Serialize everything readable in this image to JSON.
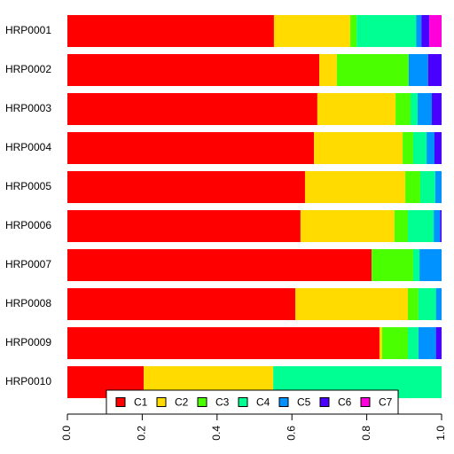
{
  "chart_data": {
    "type": "stacked-barh",
    "categories": [
      "HRP0001",
      "HRP0002",
      "HRP0003",
      "HRP0004",
      "HRP0005",
      "HRP0006",
      "HRP0007",
      "HRP0008",
      "HRP0009",
      "HRP0010"
    ],
    "series": [
      {
        "name": "C1",
        "color": "#FF0000",
        "values": [
          0.552,
          0.673,
          0.668,
          0.659,
          0.635,
          0.623,
          0.813,
          0.609,
          0.834,
          0.204
        ]
      },
      {
        "name": "C2",
        "color": "#FFDB00",
        "values": [
          0.204,
          0.047,
          0.209,
          0.237,
          0.268,
          0.251,
          0,
          0.301,
          0.007,
          0.346
        ]
      },
      {
        "name": "C3",
        "color": "#49FF00",
        "values": [
          0.017,
          0.192,
          0.04,
          0.028,
          0.04,
          0.036,
          0.111,
          0.028,
          0.069,
          0
        ]
      },
      {
        "name": "C4",
        "color": "#00FF92",
        "values": [
          0.159,
          0,
          0.019,
          0.036,
          0.04,
          0.069,
          0.017,
          0.047,
          0.028,
          0.45
        ]
      },
      {
        "name": "C5",
        "color": "#0092FF",
        "values": [
          0.014,
          0.052,
          0.038,
          0.021,
          0.017,
          0.017,
          0.059,
          0.015,
          0.047,
          0
        ]
      },
      {
        "name": "C6",
        "color": "#4900FF",
        "values": [
          0.021,
          0.036,
          0.026,
          0.019,
          0,
          0.004,
          0,
          0,
          0.015,
          0
        ]
      },
      {
        "name": "C7",
        "color": "#FF00DB",
        "values": [
          0.033,
          0,
          0,
          0,
          0,
          0,
          0,
          0,
          0,
          0
        ]
      }
    ],
    "xlim": [
      0,
      1
    ],
    "xticks": [
      {
        "value": 0,
        "label": "0.0"
      },
      {
        "value": 0.2,
        "label": "0.2"
      },
      {
        "value": 0.4,
        "label": "0.4"
      },
      {
        "value": 0.6,
        "label": "0.6"
      },
      {
        "value": 0.8,
        "label": "0.8"
      },
      {
        "value": 1,
        "label": "1.0"
      }
    ],
    "legend": "bottom"
  }
}
